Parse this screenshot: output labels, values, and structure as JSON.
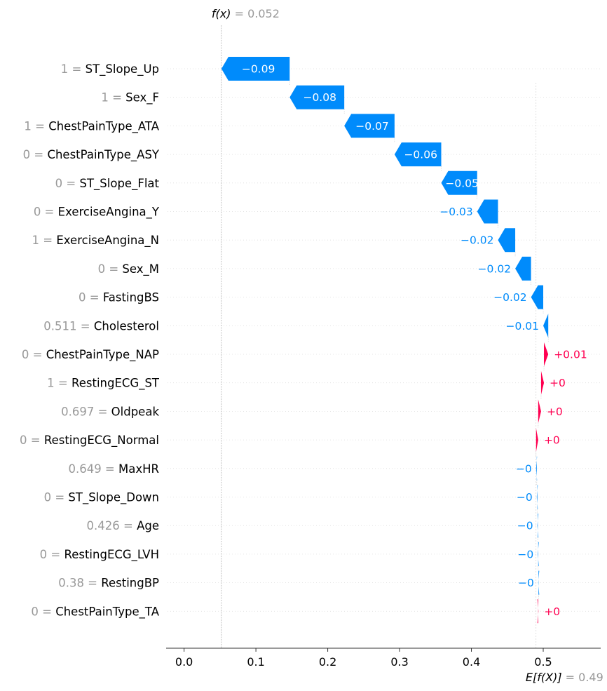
{
  "chart_data": {
    "type": "waterfall",
    "fx": {
      "label": "f(x)",
      "value_text": "= 0.052",
      "value": 0.052
    },
    "efx": {
      "label": "E[f(X)]",
      "value_text": "= 0.49",
      "value": 0.49
    },
    "xlim": [
      -0.025,
      0.58
    ],
    "xticks": [
      {
        "value": 0.0,
        "label": "0.0"
      },
      {
        "value": 0.1,
        "label": "0.1"
      },
      {
        "value": 0.2,
        "label": "0.2"
      },
      {
        "value": 0.3,
        "label": "0.3"
      },
      {
        "value": 0.4,
        "label": "0.4"
      },
      {
        "value": 0.5,
        "label": "0.5"
      }
    ],
    "features": [
      {
        "value": "1",
        "name": "ST_Slope_Up",
        "start": 0.147,
        "end": 0.052,
        "label": "−0.09",
        "sign": "neg",
        "label_pos": "inside"
      },
      {
        "value": "1",
        "name": "Sex_F",
        "start": 0.223,
        "end": 0.147,
        "label": "−0.08",
        "sign": "neg",
        "label_pos": "inside"
      },
      {
        "value": "1",
        "name": "ChestPainType_ATA",
        "start": 0.293,
        "end": 0.223,
        "label": "−0.07",
        "sign": "neg",
        "label_pos": "inside"
      },
      {
        "value": "0",
        "name": "ChestPainType_ASY",
        "start": 0.358,
        "end": 0.293,
        "label": "−0.06",
        "sign": "neg",
        "label_pos": "inside"
      },
      {
        "value": "0",
        "name": "ST_Slope_Flat",
        "start": 0.408,
        "end": 0.358,
        "label": "−0.05",
        "sign": "neg",
        "label_pos": "inside"
      },
      {
        "value": "0",
        "name": "ExerciseAngina_Y",
        "start": 0.437,
        "end": 0.408,
        "label": "−0.03",
        "sign": "neg",
        "label_pos": "outside"
      },
      {
        "value": "1",
        "name": "ExerciseAngina_N",
        "start": 0.461,
        "end": 0.437,
        "label": "−0.02",
        "sign": "neg",
        "label_pos": "outside"
      },
      {
        "value": "0",
        "name": "Sex_M",
        "start": 0.483,
        "end": 0.461,
        "label": "−0.02",
        "sign": "neg",
        "label_pos": "outside"
      },
      {
        "value": "0",
        "name": "FastingBS",
        "start": 0.5,
        "end": 0.483,
        "label": "−0.02",
        "sign": "neg",
        "label_pos": "outside"
      },
      {
        "value": "0.511",
        "name": "Cholesterol",
        "start": 0.507,
        "end": 0.5,
        "label": "−0.01",
        "sign": "neg",
        "label_pos": "outside"
      },
      {
        "value": "0",
        "name": "ChestPainType_NAP",
        "start": 0.501,
        "end": 0.507,
        "label": "+0.01",
        "sign": "pos",
        "label_pos": "outside"
      },
      {
        "value": "1",
        "name": "RestingECG_ST",
        "start": 0.497,
        "end": 0.501,
        "label": "+0",
        "sign": "pos",
        "label_pos": "outside"
      },
      {
        "value": "0.697",
        "name": "Oldpeak",
        "start": 0.493,
        "end": 0.497,
        "label": "+0",
        "sign": "pos",
        "label_pos": "outside"
      },
      {
        "value": "0",
        "name": "RestingECG_Normal",
        "start": 0.49,
        "end": 0.493,
        "label": "+0",
        "sign": "pos",
        "label_pos": "outside"
      },
      {
        "value": "0.649",
        "name": "MaxHR",
        "start": 0.491,
        "end": 0.49,
        "label": "−0",
        "sign": "neg",
        "label_pos": "outside"
      },
      {
        "value": "0",
        "name": "ST_Slope_Down",
        "start": 0.4918,
        "end": 0.491,
        "label": "−0",
        "sign": "neg",
        "label_pos": "outside"
      },
      {
        "value": "0.426",
        "name": "Age",
        "start": 0.4924,
        "end": 0.4918,
        "label": "−0",
        "sign": "neg",
        "label_pos": "outside"
      },
      {
        "value": "0",
        "name": "RestingECG_LVH",
        "start": 0.493,
        "end": 0.4924,
        "label": "−0",
        "sign": "neg",
        "label_pos": "outside"
      },
      {
        "value": "0.38",
        "name": "RestingBP",
        "start": 0.4934,
        "end": 0.493,
        "label": "−0",
        "sign": "neg",
        "label_pos": "outside"
      },
      {
        "value": "0",
        "name": "ChestPainType_TA",
        "start": 0.493,
        "end": 0.4934,
        "label": "+0",
        "sign": "pos",
        "label_pos": "outside"
      }
    ],
    "colors": {
      "negative": "#008bfb",
      "positive": "#ff0051",
      "value_text": "#999999",
      "name_text": "#000000",
      "grid": "#dddddd",
      "axis": "#333333"
    }
  }
}
